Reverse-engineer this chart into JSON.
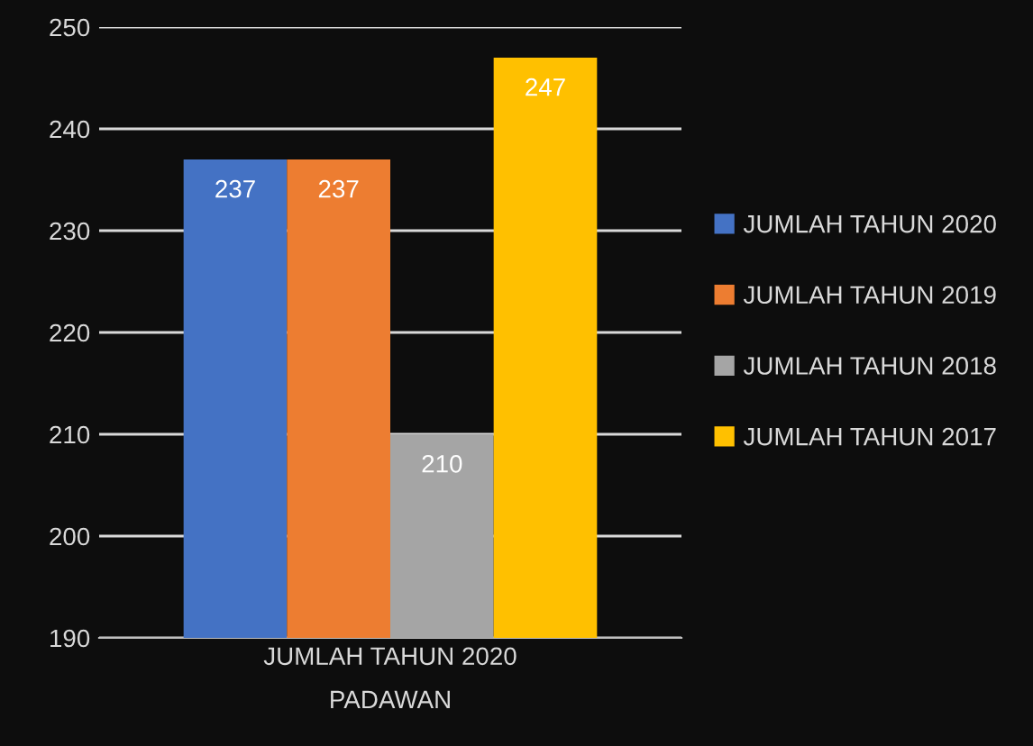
{
  "chart_data": {
    "type": "bar",
    "xlabel": "PADAWAN",
    "categories": [
      "JUMLAH TAHUN 2020"
    ],
    "series": [
      {
        "name": "JUMLAH TAHUN 2020",
        "color": "#4472c4",
        "values": [
          237
        ]
      },
      {
        "name": "JUMLAH TAHUN 2019",
        "color": "#ed7d31",
        "values": [
          237
        ]
      },
      {
        "name": "JUMLAH TAHUN 2018",
        "color": "#a5a5a5",
        "values": [
          210
        ]
      },
      {
        "name": "JUMLAH TAHUN 2017",
        "color": "#ffc000",
        "values": [
          247
        ]
      }
    ],
    "ylim": [
      190,
      250
    ],
    "yticks": [
      190,
      200,
      210,
      220,
      230,
      240,
      250
    ],
    "grid": "y",
    "legend": "right",
    "data_labels": true
  }
}
